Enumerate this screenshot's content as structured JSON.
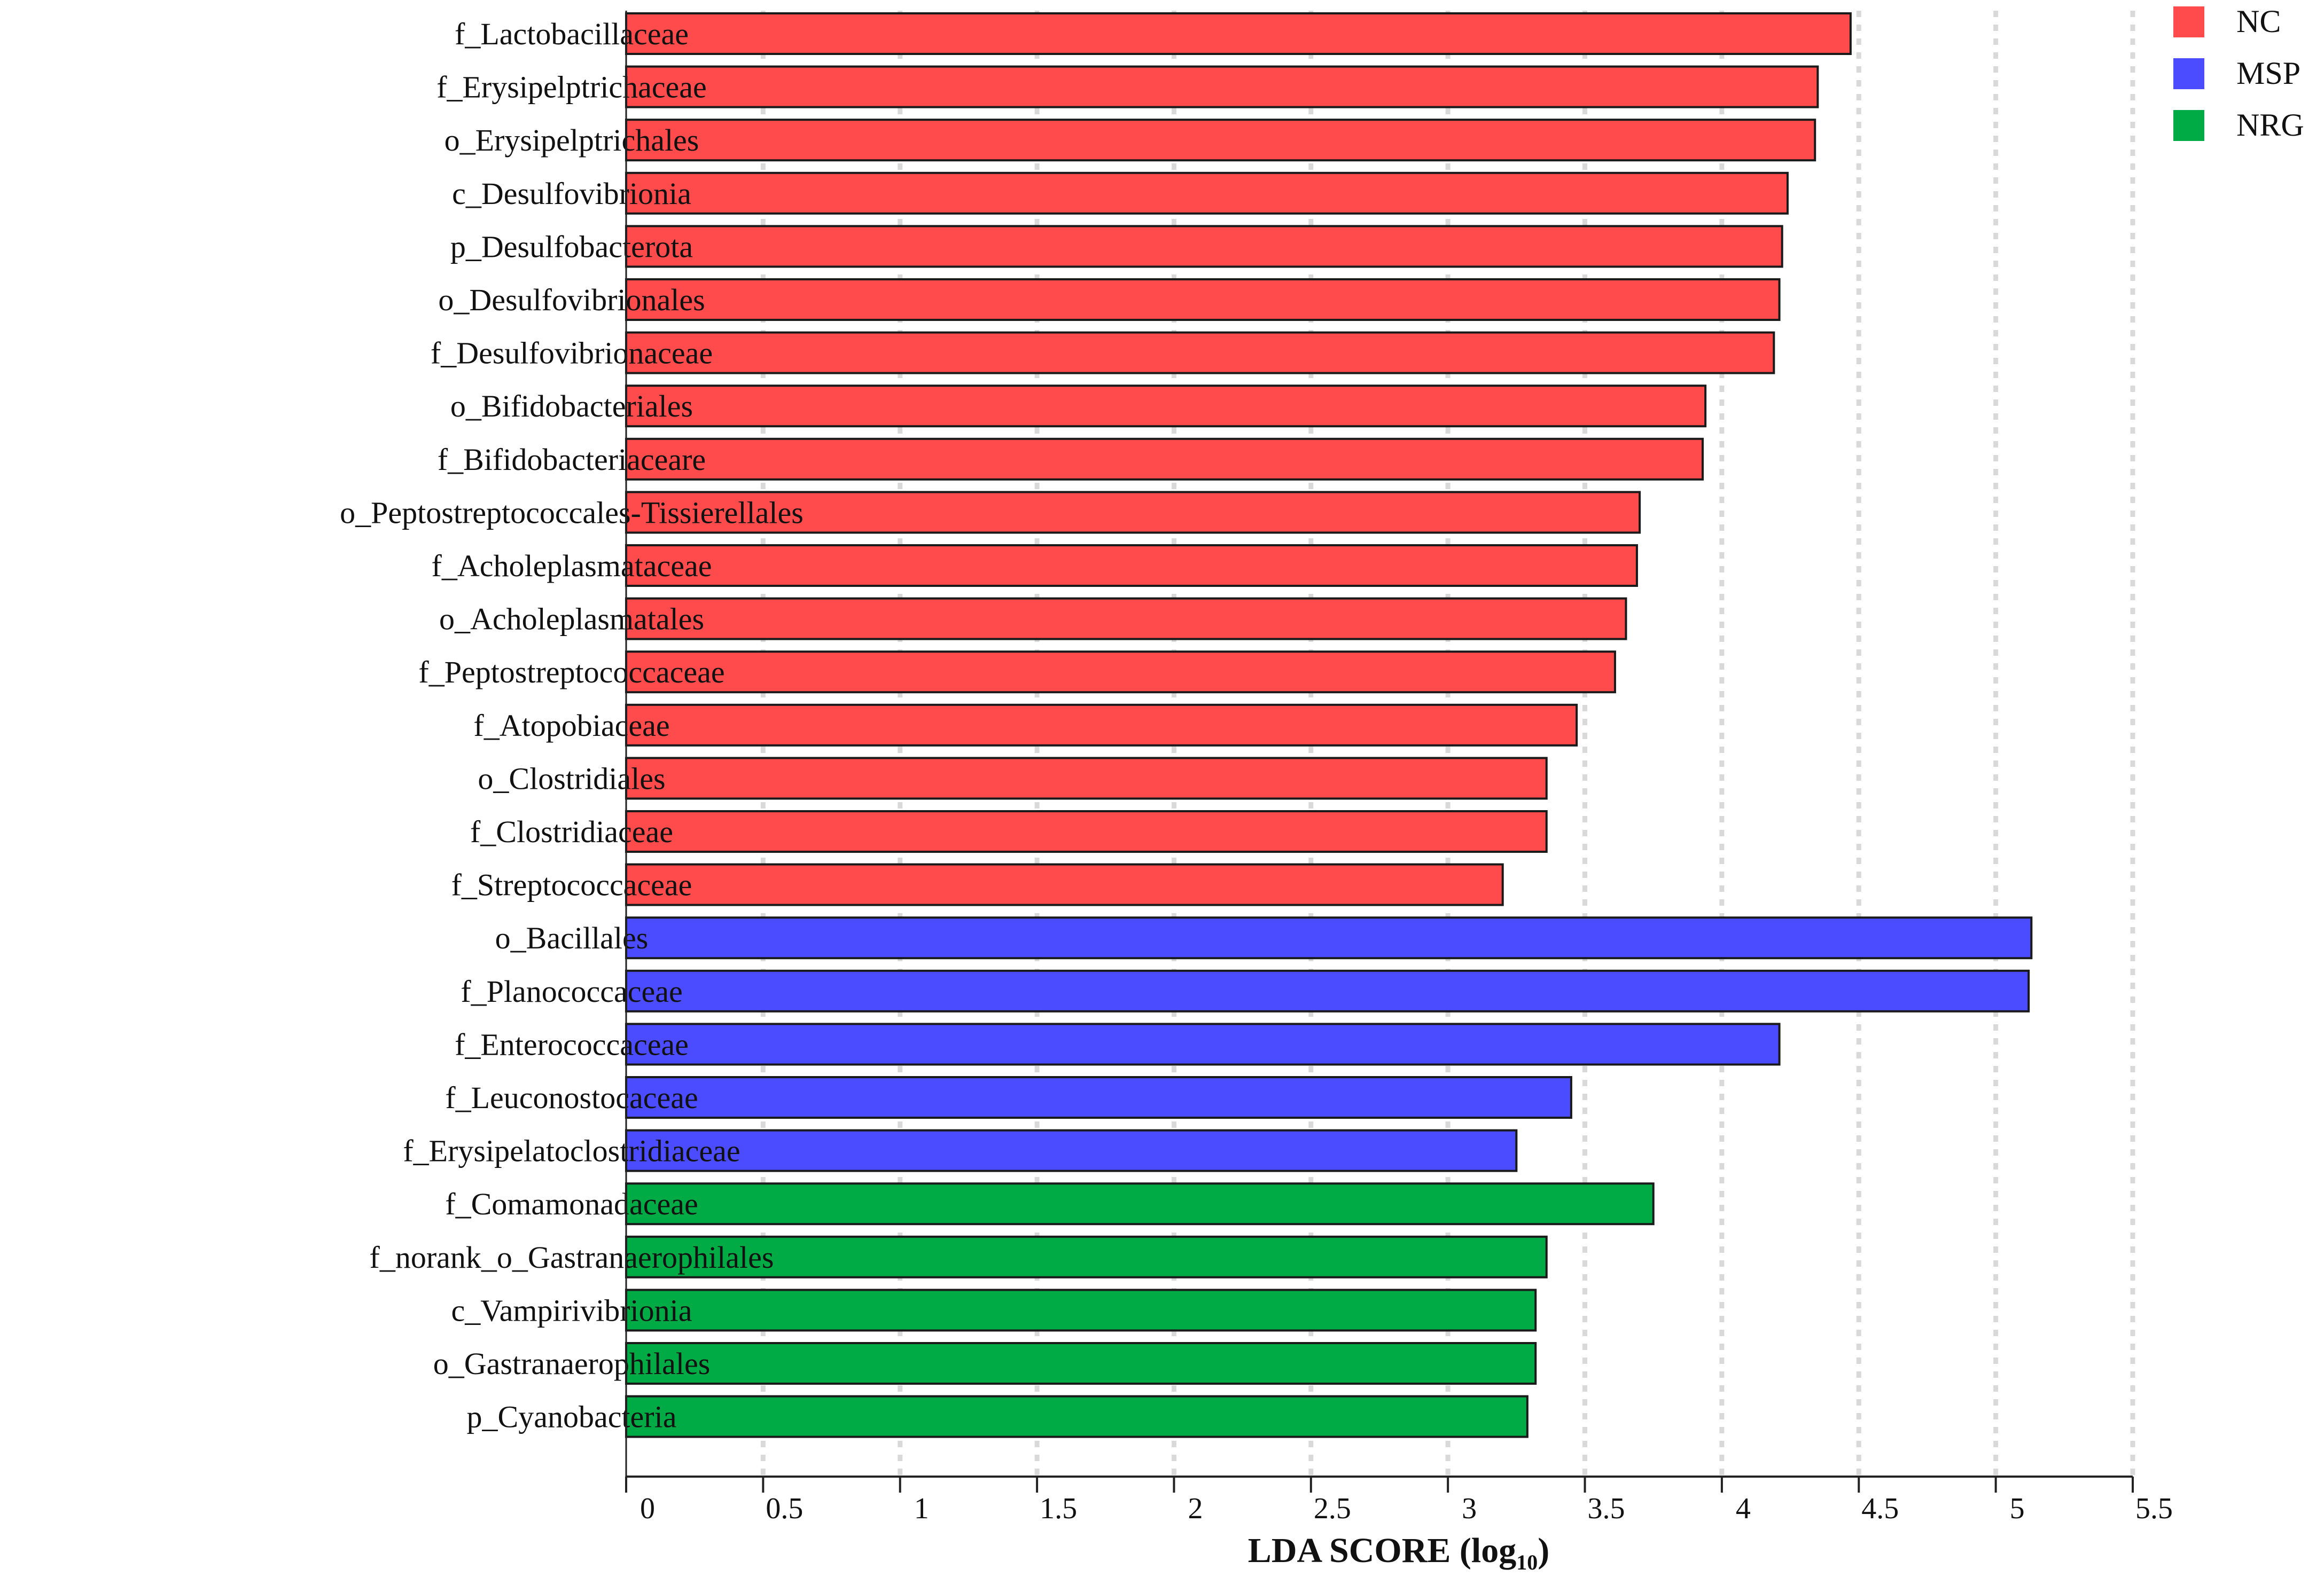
{
  "chart_data": {
    "type": "bar",
    "orientation": "horizontal",
    "xlabel_main": "LDA SCORE (log",
    "xlabel_sub": "10",
    "xlabel_close": ")",
    "xlim": [
      0,
      5.5
    ],
    "xticks": [
      "0",
      "0.5",
      "1",
      "1.5",
      "2",
      "2.5",
      "3",
      "3.5",
      "4",
      "4.5",
      "5",
      "5.5"
    ],
    "grid": "vertical dotted",
    "legend_position": "top-right",
    "series": [
      {
        "name": "NC",
        "color": "#ff4b4b"
      },
      {
        "name": "MSP",
        "color": "#4b4bff"
      },
      {
        "name": "NRG",
        "color": "#00aa44"
      }
    ],
    "bars": [
      {
        "label": "f_Lactobacillaceae",
        "value": 4.47,
        "group": "NC"
      },
      {
        "label": "f_Erysipelptrichaceae",
        "value": 4.35,
        "group": "NC"
      },
      {
        "label": "o_Erysipelptrichales",
        "value": 4.34,
        "group": "NC"
      },
      {
        "label": "c_Desulfovibrionia",
        "value": 4.24,
        "group": "NC"
      },
      {
        "label": "p_Desulfobacterota",
        "value": 4.22,
        "group": "NC"
      },
      {
        "label": "o_Desulfovibrionales",
        "value": 4.21,
        "group": "NC"
      },
      {
        "label": "f_Desulfovibrionaceae",
        "value": 4.19,
        "group": "NC"
      },
      {
        "label": "o_Bifidobacteriales",
        "value": 3.94,
        "group": "NC"
      },
      {
        "label": "f_Bifidobacteriaceare",
        "value": 3.93,
        "group": "NC"
      },
      {
        "label": "o_Peptostreptococcales-Tissierellales",
        "value": 3.7,
        "group": "NC"
      },
      {
        "label": "f_Acholeplasmataceae",
        "value": 3.69,
        "group": "NC"
      },
      {
        "label": "o_Acholeplasmatales",
        "value": 3.65,
        "group": "NC"
      },
      {
        "label": "f_Peptostreptococcaceae",
        "value": 3.61,
        "group": "NC"
      },
      {
        "label": "f_Atopobiaceae",
        "value": 3.47,
        "group": "NC"
      },
      {
        "label": "o_Clostridiales",
        "value": 3.36,
        "group": "NC"
      },
      {
        "label": "f_Clostridiaceae",
        "value": 3.36,
        "group": "NC"
      },
      {
        "label": "f_Streptococcaceae",
        "value": 3.2,
        "group": "NC"
      },
      {
        "label": "o_Bacillales",
        "value": 5.13,
        "group": "MSP"
      },
      {
        "label": "f_Planococcaceae",
        "value": 5.12,
        "group": "MSP"
      },
      {
        "label": "f_Enterococcaceae",
        "value": 4.21,
        "group": "MSP"
      },
      {
        "label": "f_Leuconostocaceae",
        "value": 3.45,
        "group": "MSP"
      },
      {
        "label": "f_Erysipelatoclostridiaceae",
        "value": 3.25,
        "group": "MSP"
      },
      {
        "label": "f_Comamonadaceae",
        "value": 3.75,
        "group": "NRG"
      },
      {
        "label": "f_norank_o_Gastranaerophilales",
        "value": 3.36,
        "group": "NRG"
      },
      {
        "label": "c_Vampirivibrionia",
        "value": 3.32,
        "group": "NRG"
      },
      {
        "label": "o_Gastranaerophilales",
        "value": 3.32,
        "group": "NRG"
      },
      {
        "label": "p_Cyanobacteria",
        "value": 3.29,
        "group": "NRG"
      }
    ]
  }
}
